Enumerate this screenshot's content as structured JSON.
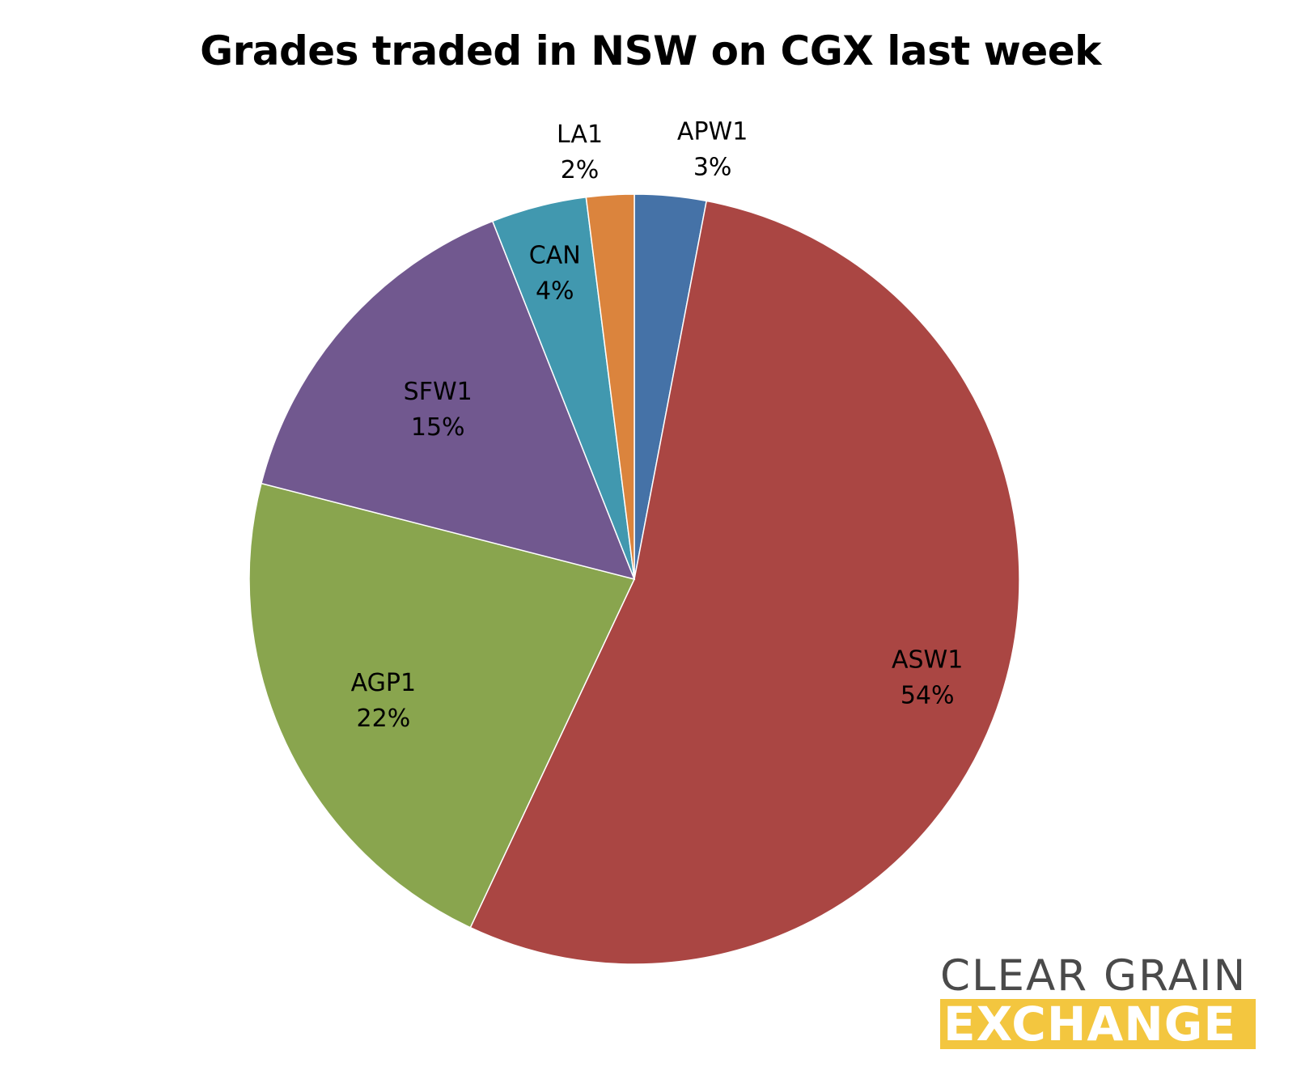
{
  "chart_data": {
    "type": "pie",
    "title": "Grades traded in NSW on CGX last week",
    "slices": [
      {
        "name": "APW1",
        "value": 3,
        "label": "3%",
        "color": "#4572a7"
      },
      {
        "name": "ASW1",
        "value": 54,
        "label": "54%",
        "color": "#aa4643"
      },
      {
        "name": "AGP1",
        "value": 22,
        "label": "22%",
        "color": "#89a54e"
      },
      {
        "name": "SFW1",
        "value": 15,
        "label": "15%",
        "color": "#71588f"
      },
      {
        "name": "CAN",
        "value": 4,
        "label": "4%",
        "color": "#4198af"
      },
      {
        "name": "LA1",
        "value": 2,
        "label": "2%",
        "color": "#db843d"
      }
    ],
    "start": "12 o'clock",
    "direction": "clockwise",
    "legend": "none",
    "data_labels": "category name and percentage"
  },
  "logo": {
    "line1": "CLEAR GRAIN",
    "line2": "EXCHANGE",
    "text_color": "#4a4a4a",
    "band_color": "#f3c63f"
  }
}
